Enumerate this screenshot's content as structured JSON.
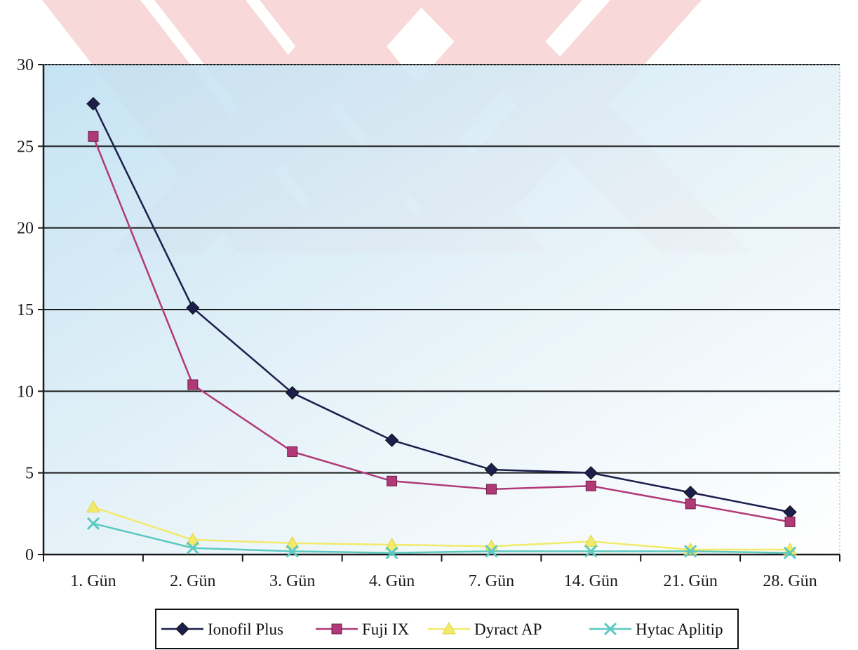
{
  "chart_data": {
    "type": "line",
    "title": "",
    "xlabel": "",
    "ylabel": "",
    "categories": [
      "1. Gün",
      "2. Gün",
      "3. Gün",
      "4. Gün",
      "7. Gün",
      "14. Gün",
      "21. Gün",
      "28. Gün"
    ],
    "ylim": [
      0,
      30
    ],
    "yticks": [
      "0",
      "5",
      "10",
      "15",
      "20",
      "25",
      "30"
    ],
    "grid": true,
    "legend_position": "bottom",
    "series": [
      {
        "name": "Ionofil Plus",
        "marker": "diamond",
        "color": "#1b1f4d",
        "values": [
          27.6,
          15.1,
          9.9,
          7.0,
          5.2,
          5.0,
          3.8,
          2.6
        ]
      },
      {
        "name": "Fuji IX",
        "marker": "square",
        "color": "#b03a78",
        "values": [
          25.6,
          10.4,
          6.3,
          4.5,
          4.0,
          4.2,
          3.1,
          2.0
        ]
      },
      {
        "name": "Dyract AP",
        "marker": "triangle",
        "color": "#f2ea6a",
        "values": [
          2.9,
          0.9,
          0.7,
          0.6,
          0.5,
          0.8,
          0.3,
          0.3
        ]
      },
      {
        "name": "Hytac Aplitip",
        "marker": "x",
        "color": "#5cc9c0",
        "values": [
          1.9,
          0.4,
          0.2,
          0.1,
          0.2,
          0.2,
          0.2,
          0.1
        ]
      }
    ]
  }
}
